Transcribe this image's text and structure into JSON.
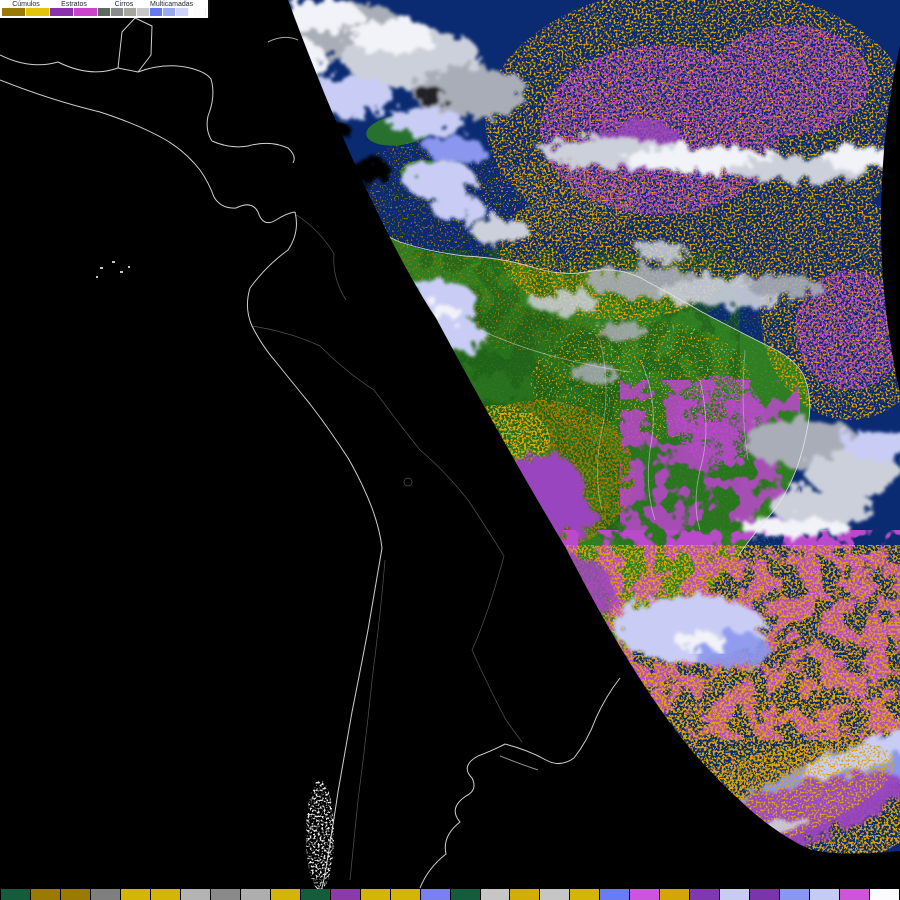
{
  "legend": {
    "groups": [
      {
        "label": "Cúmulos",
        "swatches": [
          "#9a7a04",
          "#e2c40a"
        ]
      },
      {
        "label": "Estratos",
        "swatches": [
          "#8833aa",
          "#cc44cc"
        ]
      },
      {
        "label": "Cirros",
        "swatches": [
          "#5e6a5e",
          "#8a8a8a",
          "#a6a69e",
          "#c8c8c8"
        ]
      },
      {
        "label": "Multicamadas",
        "swatches": [
          "#6678ee",
          "#99a8f0",
          "#ccd2f8"
        ]
      },
      {
        "label": "",
        "swatches": [
          "#fcfcff"
        ]
      }
    ]
  },
  "colorbar": {
    "colors": [
      "#145c3c",
      "#9a7a04",
      "#9a7a04",
      "#7f7f7f",
      "#d4b404",
      "#d4b404",
      "#b4b4b4",
      "#8a8a8a",
      "#aeaeae",
      "#d4b404",
      "#145c3c",
      "#8c3aa8",
      "#d4b404",
      "#d4b404",
      "#7a80f0",
      "#145c3c",
      "#c6c6c6",
      "#d2ae04",
      "#c6c6c6",
      "#d4b404",
      "#6a7cf4",
      "#cc55dd",
      "#d2a604",
      "#8038b0",
      "#c8ccf0",
      "#7a35a8",
      "#8a97f0",
      "#c4ccf4",
      "#cc55d8",
      "#fcfcff"
    ]
  },
  "palette": {
    "night": "#000000",
    "ocean": "#0a2a72",
    "land": "#2e7d22",
    "landLight": "#569a2e",
    "landDark": "#1d5a14",
    "gold": "#dca407",
    "goldDark": "#9c7a00",
    "orchid": "#bb49cc",
    "purple": "#9a44c0",
    "lavender": "#c9cdf5",
    "periwinkle": "#8b97ef",
    "cirrus": "#a9adb7",
    "cirrusLight": "#ccd0da",
    "cloudWhite": "#f2f3f8",
    "outline": "#e8e8e8",
    "outlineFaint": "#9a9a9a"
  }
}
